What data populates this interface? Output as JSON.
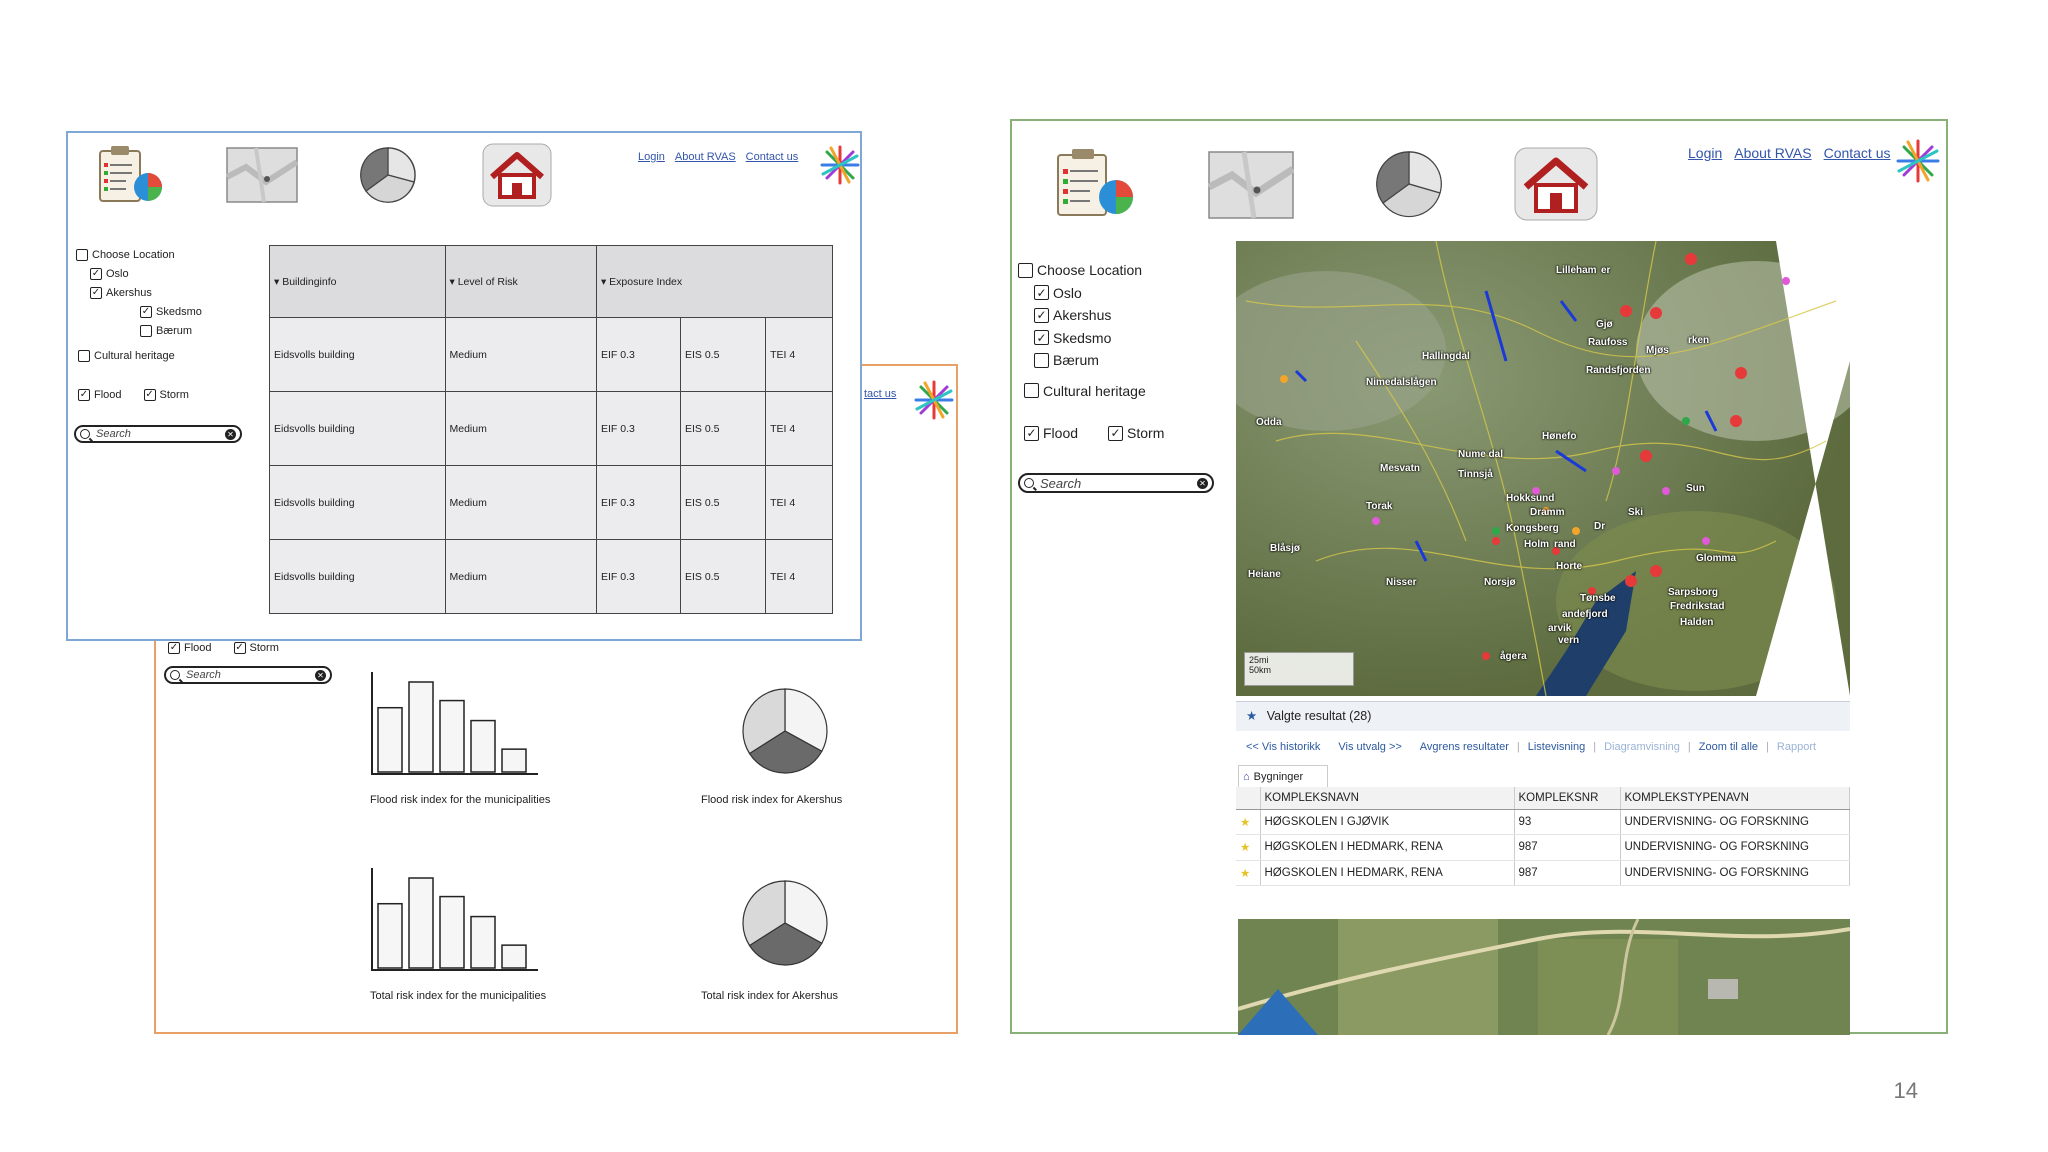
{
  "slide_number": "14",
  "colors": {
    "blue_frame": "#7fa7d6",
    "orange_frame": "#e8a066",
    "green_frame": "#8ab07a",
    "link": "#3355aa",
    "marker_red": "#e63a3a"
  },
  "toolbar_icons": [
    "clipboard-chart-icon",
    "map-icon",
    "pie-chart-icon",
    "home-icon",
    "asterisk-logo-icon"
  ],
  "top_links": {
    "login": "Login",
    "about": "About RVAS",
    "contact": "Contact us",
    "contact_partial": "tact us"
  },
  "tree": {
    "choose_location": "Choose Location",
    "oslo": "Oslo",
    "akershus": "Akershus",
    "skedsmo": "Skedsmo",
    "baerum": "Bærum",
    "cultural_heritage": "Cultural heritage",
    "flood": "Flood",
    "storm": "Storm"
  },
  "search": {
    "placeholder": "Search"
  },
  "building_table": {
    "headers": [
      "▾ Buildinginfo",
      "▾ Level of Risk",
      "▾ Exposure Index"
    ],
    "rows": [
      [
        "Eidsvolls building",
        "Medium",
        "EIF 0.3",
        "EIS 0.5",
        "TEI 4"
      ],
      [
        "Eidsvolls building",
        "Medium",
        "EIF 0.3",
        "EIS 0.5",
        "TEI 4"
      ],
      [
        "Eidsvolls building",
        "Medium",
        "EIF 0.3",
        "EIS 0.5",
        "TEI 4"
      ],
      [
        "Eidsvolls building",
        "Medium",
        "EIF 0.3",
        "EIS 0.5",
        "TEI 4"
      ]
    ]
  },
  "chart_captions": {
    "flood_bars": "Flood risk index for the municipalities",
    "flood_pie": "Flood risk index for Akershus",
    "total_bars": "Total risk index for the municipalities",
    "total_pie": "Total risk index for Akershus"
  },
  "map": {
    "labels": [
      "Lilleham",
      "er",
      "Gjø",
      "Raufoss",
      "Mjøs",
      "rken",
      "Hallingdal",
      "Randsfjorden",
      "Nimedalslågen",
      "Hønefo",
      "Odda",
      "Nume dal",
      "Mesvatn",
      "Tinnsjå",
      "Hokksund",
      "Dramm",
      "Kongsberg",
      "Holm",
      "rand",
      "Horte",
      "Tønsbe",
      "andefjord",
      "arvik",
      "vern",
      "Sarpsborg",
      "Fredrikstad",
      "Halden",
      "Nisser",
      "Norsjø",
      "Heiane",
      "Blåsjø",
      "Torak",
      "Glomma",
      "Sun",
      "Ski",
      "Dr",
      "ågera"
    ],
    "scale_top": "25mi",
    "scale_bottom": "50km"
  },
  "results": {
    "title": "Valgte resultat (28)",
    "links": [
      "<< Vis historikk",
      "Vis utvalg >>",
      "Avgrens resultater",
      "Listevisning",
      "Diagramvisning",
      "Zoom til alle",
      "Rapport"
    ],
    "tab": "Bygninger",
    "columns": [
      "KOMPLEKSNAVN",
      "KOMPLEKSNR",
      "KOMPLEKSTYPENAVN"
    ],
    "rows": [
      [
        "HØGSKOLEN I GJØVIK",
        "93",
        "UNDERVISNING- OG FORSKNING"
      ],
      [
        "HØGSKOLEN I HEDMARK, RENA",
        "987",
        "UNDERVISNING- OG FORSKNING"
      ],
      [
        "HØGSKOLEN I HEDMARK, RENA",
        "987",
        "UNDERVISNING- OG FORSKNING"
      ]
    ]
  },
  "bar_charts": {
    "flood_values": [
      0.45,
      0.63,
      0.5,
      0.36,
      0.16
    ],
    "total_values": [
      0.45,
      0.63,
      0.5,
      0.36,
      0.16
    ]
  },
  "pie_charts": {
    "slices": [
      0.33,
      0.33,
      0.34
    ],
    "colors": [
      "#6a6a6a",
      "#d9d9d9",
      "#f4f4f4"
    ]
  }
}
